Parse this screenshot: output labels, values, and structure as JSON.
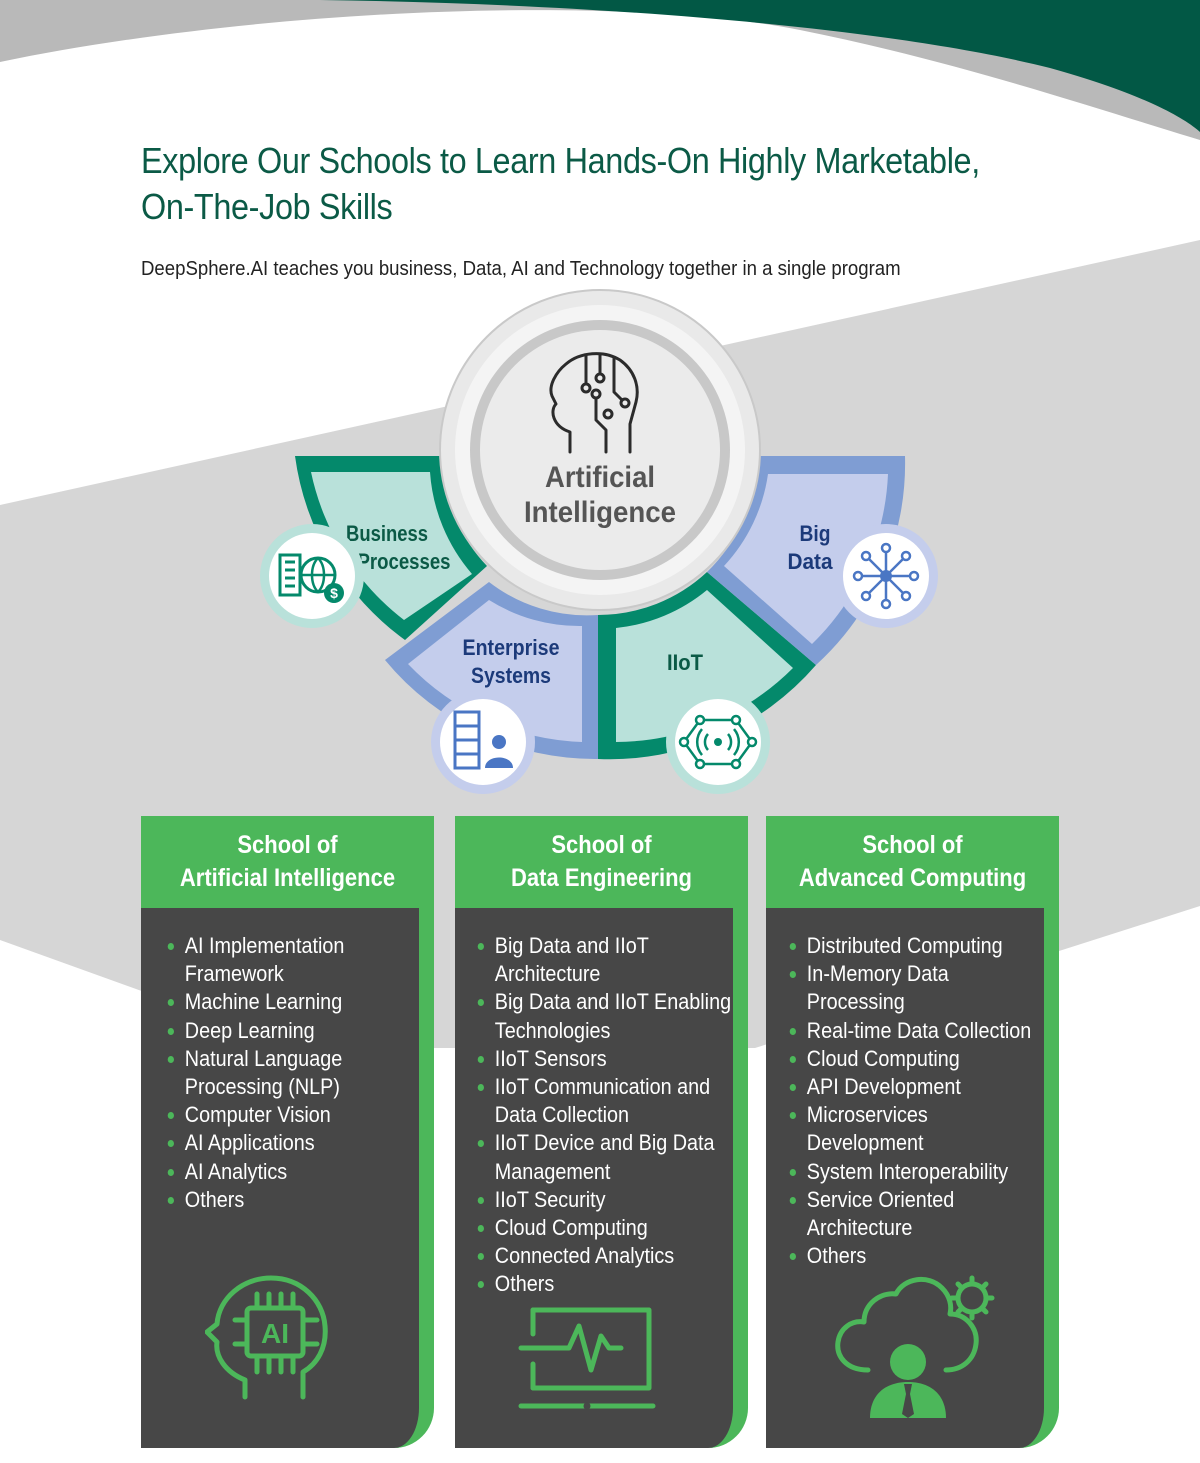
{
  "header": {
    "title_line1": "Explore Our Schools to Learn Hands-On Highly Marketable,",
    "title_line2": "On-The-Job Skills",
    "subtitle": "DeepSphere.AI teaches you business, Data, AI and Technology together in a single program"
  },
  "hub": {
    "line1": "Artificial",
    "line2": "Intelligence",
    "icon": "ai-head-circuit-icon"
  },
  "segments": [
    {
      "line1": "Business",
      "line2": "Processes",
      "icon": "business-globe-dollar-icon",
      "color": "#b9e1da",
      "border": "#04896b",
      "text_color": "#0b5a46"
    },
    {
      "line1": "Enterprise",
      "line2": "Systems",
      "icon": "enterprise-server-user-icon",
      "color": "#c4cdec",
      "border": "#7f9dd3",
      "text_color": "#1c3a7a"
    },
    {
      "line1": "IIoT",
      "line2": "",
      "icon": "iiot-network-signal-icon",
      "color": "#b9e1da",
      "border": "#04896b",
      "text_color": "#0b5a46"
    },
    {
      "line1": "Big",
      "line2": "Data",
      "icon": "big-data-network-icon",
      "color": "#c4cdec",
      "border": "#7f9dd3",
      "text_color": "#1c3a7a"
    }
  ],
  "schools": [
    {
      "title_line1": "School of",
      "title_line2": "Artificial Intelligence",
      "items": [
        "AI Implementation Framework",
        "Machine Learning",
        "Deep Learning",
        "Natural Language Processing (NLP)",
        "Computer Vision",
        "AI Applications",
        "AI Analytics",
        "Others"
      ],
      "icon": "ai-chip-head-icon"
    },
    {
      "title_line1": "School of",
      "title_line2": "Data Engineering",
      "items": [
        "Big Data and IIoT Architecture",
        "Big Data and IIoT Enabling Technologies",
        "IIoT Sensors",
        "IIoT Communication and Data Collection",
        "IIoT Device and Big Data Management",
        "IIoT Security",
        "Cloud Computing",
        "Connected Analytics",
        "Others"
      ],
      "icon": "monitor-pulse-icon"
    },
    {
      "title_line1": "School of",
      "title_line2": "Advanced Computing",
      "items": [
        "Distributed Computing",
        "In-Memory Data Processing",
        "Real-time Data Collection",
        "Cloud Computing",
        "API Development",
        "Microservices Development",
        "System Interoperability",
        "Service Oriented Architecture",
        "Others"
      ],
      "icon": "cloud-user-gear-icon"
    }
  ],
  "colors": {
    "dark_green": "#025845",
    "accent_green": "#4cb75a",
    "teal": "#04896b",
    "light_teal": "#b9e1da",
    "periwinkle": "#7f9dd3",
    "light_periwinkle": "#c4cdec",
    "card_dark": "#474747",
    "band_gray": "#d6d6d6"
  }
}
